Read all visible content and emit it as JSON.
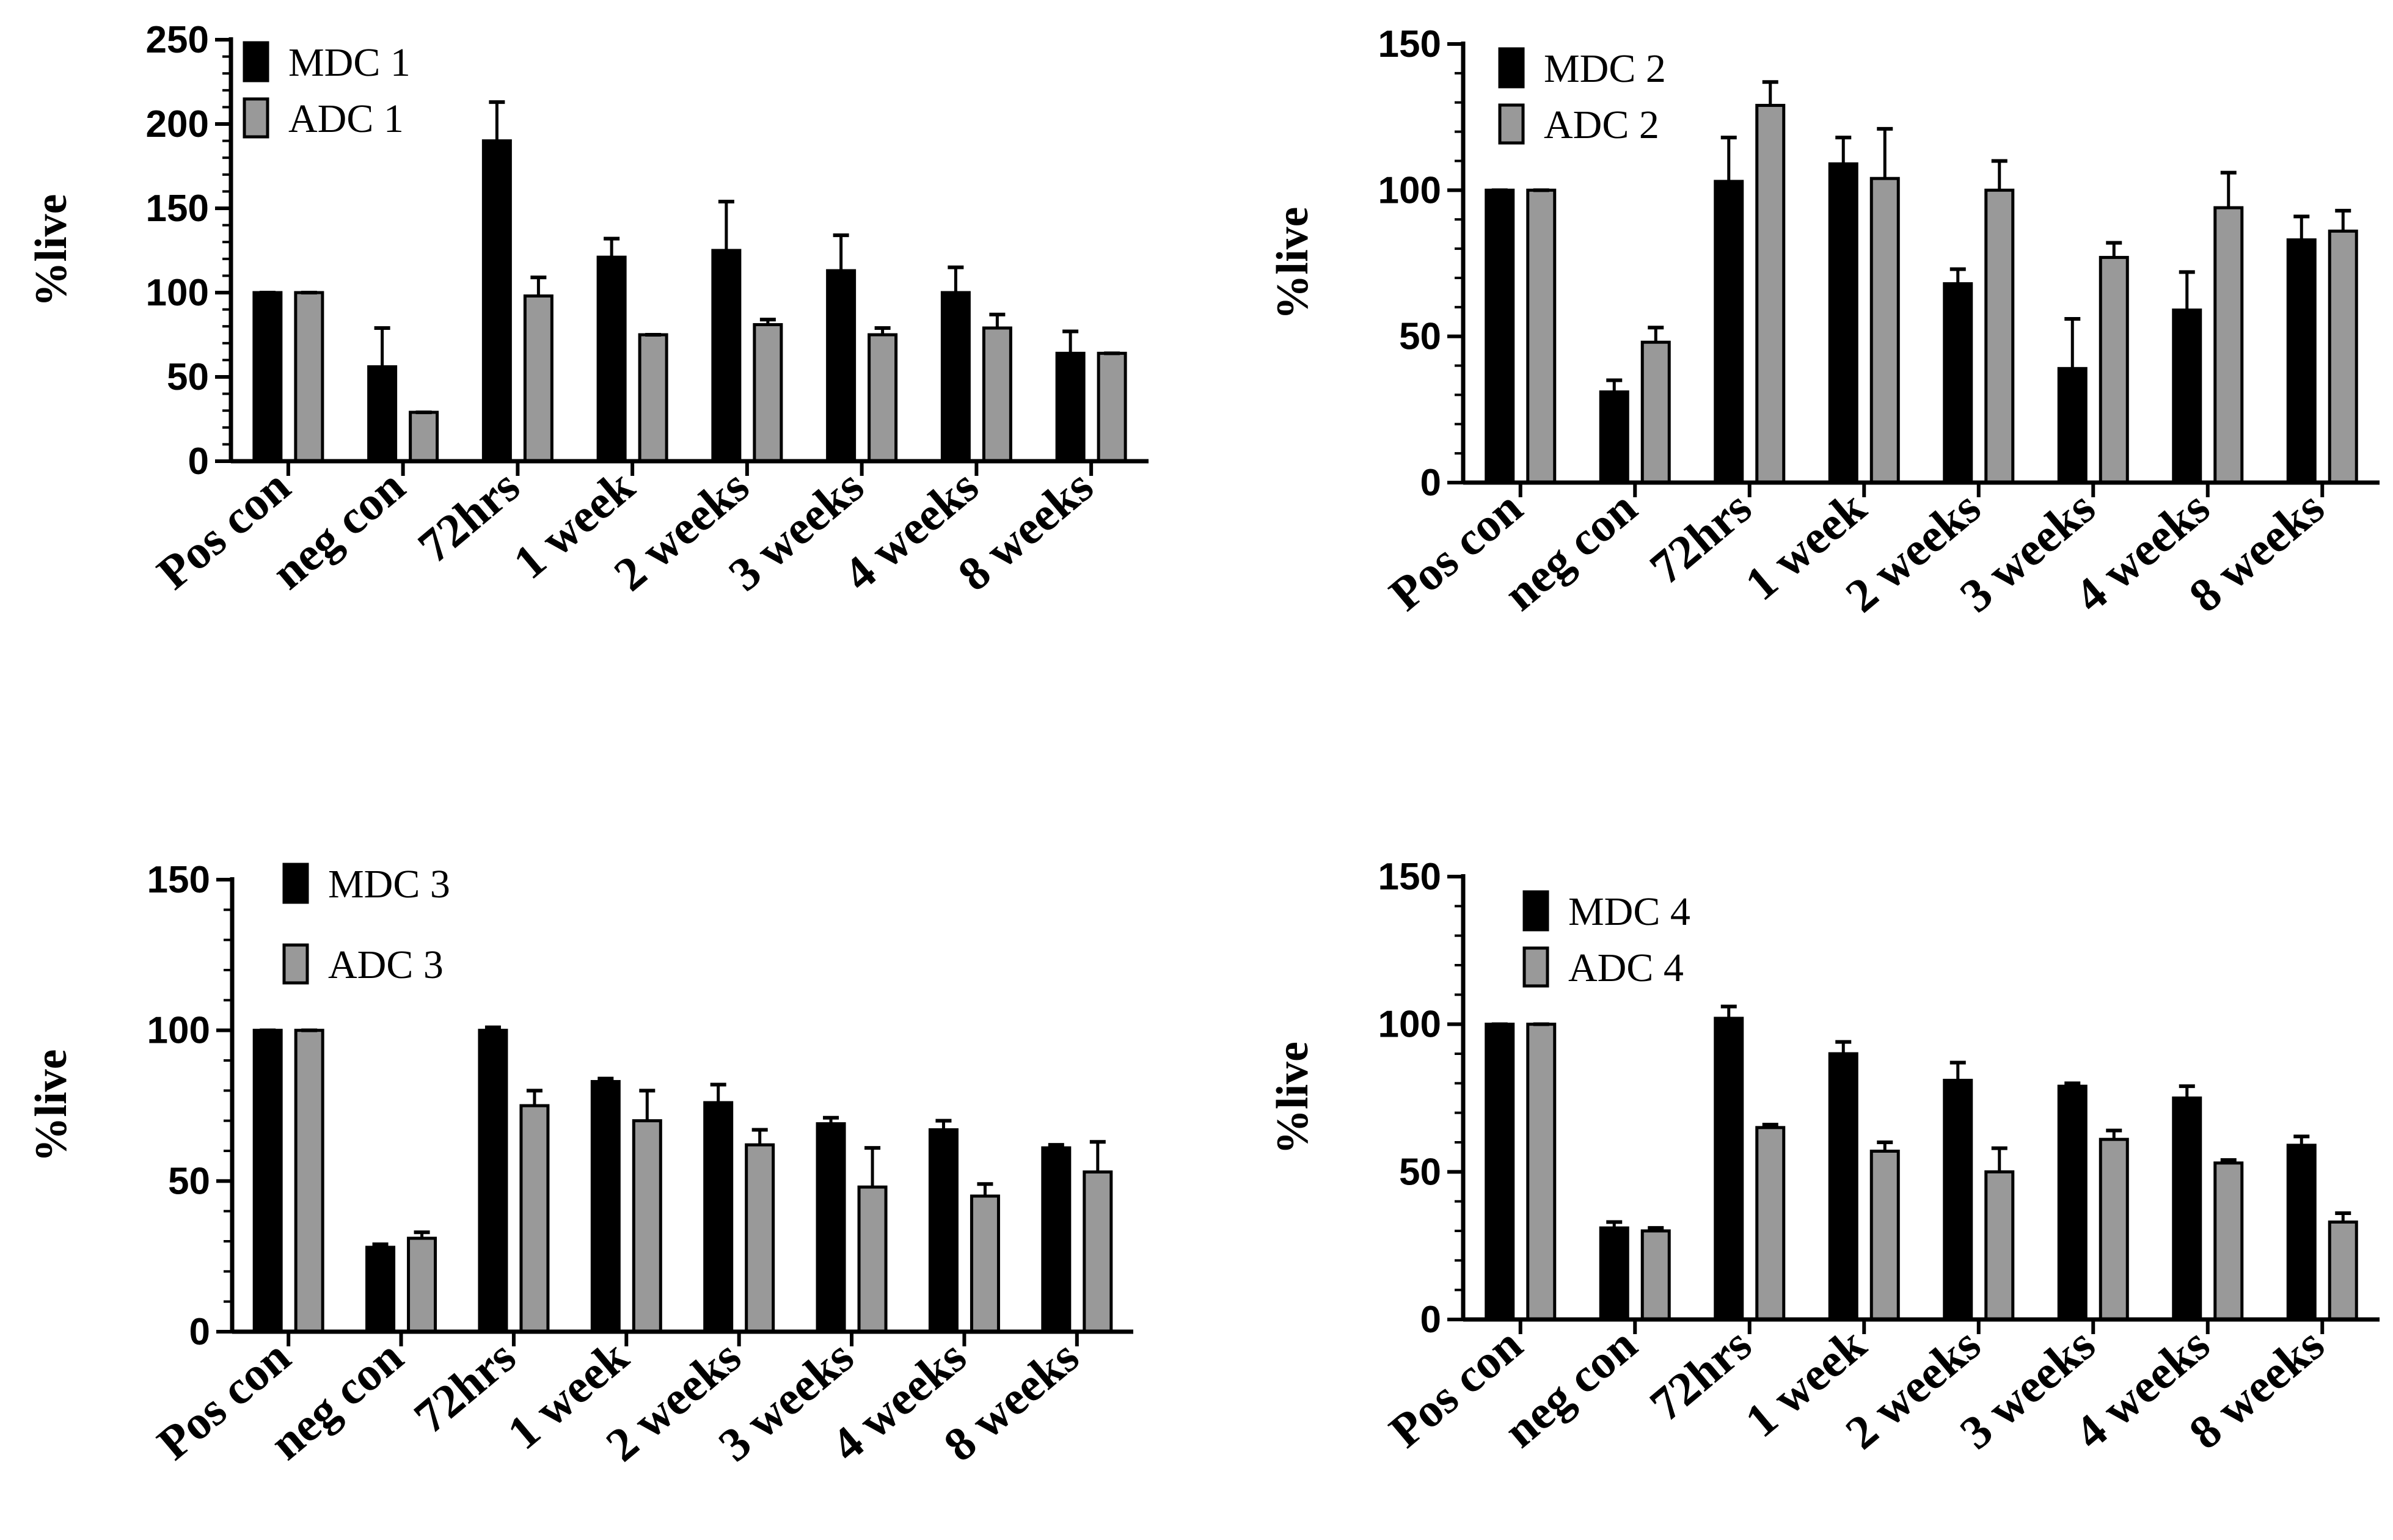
{
  "chart_data": [
    {
      "type": "bar",
      "ylabel": "%live",
      "ylim": [
        0,
        250
      ],
      "yticks": [
        0,
        50,
        100,
        150,
        200,
        250
      ],
      "categories": [
        "Pos con",
        "neg con",
        "72hrs",
        "1 week",
        "2 weeks",
        "3 weeks",
        "4 weeks",
        "8 weeks"
      ],
      "series": [
        {
          "name": "MDC 1",
          "color": "#000000",
          "values": [
            100,
            56,
            190,
            121,
            125,
            113,
            100,
            64
          ],
          "errors": [
            0,
            23,
            23,
            11,
            29,
            21,
            15,
            13
          ]
        },
        {
          "name": "ADC 1",
          "color": "#999999",
          "values": [
            100,
            29,
            98,
            75,
            81,
            75,
            79,
            64
          ],
          "errors": [
            0,
            0,
            11,
            0,
            3,
            4,
            8,
            0
          ]
        }
      ]
    },
    {
      "type": "bar",
      "ylabel": "%live",
      "ylim": [
        0,
        150
      ],
      "yticks": [
        0,
        50,
        100,
        150
      ],
      "categories": [
        "Pos con",
        "neg con",
        "72hrs",
        "1 week",
        "2 weeks",
        "3 weeks",
        "4 weeks",
        "8 weeks"
      ],
      "series": [
        {
          "name": "MDC 2",
          "color": "#000000",
          "values": [
            100,
            31,
            103,
            109,
            68,
            39,
            59,
            83
          ],
          "errors": [
            0,
            4,
            15,
            9,
            5,
            17,
            13,
            8
          ]
        },
        {
          "name": "ADC 2",
          "color": "#999999",
          "values": [
            100,
            48,
            129,
            104,
            100,
            77,
            94,
            86
          ],
          "errors": [
            0,
            5,
            8,
            17,
            10,
            5,
            12,
            7
          ]
        }
      ]
    },
    {
      "type": "bar",
      "ylabel": "%live",
      "ylim": [
        0,
        150
      ],
      "yticks": [
        0,
        50,
        100,
        150
      ],
      "categories": [
        "Pos con",
        "neg con",
        "72hrs",
        "1 week",
        "2 weeks",
        "3 weeks",
        "4 weeks",
        "8 weeks"
      ],
      "series": [
        {
          "name": "MDC 3",
          "color": "#000000",
          "values": [
            100,
            28,
            100,
            83,
            76,
            69,
            67,
            61
          ],
          "errors": [
            0,
            1,
            1,
            1,
            6,
            2,
            3,
            1
          ]
        },
        {
          "name": "ADC 3",
          "color": "#999999",
          "values": [
            100,
            31,
            75,
            70,
            62,
            48,
            45,
            53
          ],
          "errors": [
            0,
            2,
            5,
            10,
            5,
            13,
            4,
            10
          ]
        }
      ]
    },
    {
      "type": "bar",
      "ylabel": "%live",
      "ylim": [
        0,
        150
      ],
      "yticks": [
        0,
        50,
        100,
        150
      ],
      "categories": [
        "Pos con",
        "neg con",
        "72hrs",
        "1 week",
        "2 weeks",
        "3 weeks",
        "4 weeks",
        "8 weeks"
      ],
      "series": [
        {
          "name": "MDC 4",
          "color": "#000000",
          "values": [
            100,
            31,
            102,
            90,
            81,
            79,
            75,
            59
          ],
          "errors": [
            0,
            2,
            4,
            4,
            6,
            1,
            4,
            3
          ]
        },
        {
          "name": "ADC 4",
          "color": "#999999",
          "values": [
            100,
            30,
            65,
            57,
            50,
            61,
            53,
            33
          ],
          "errors": [
            0,
            1,
            1,
            3,
            8,
            3,
            1,
            3
          ]
        }
      ]
    }
  ]
}
